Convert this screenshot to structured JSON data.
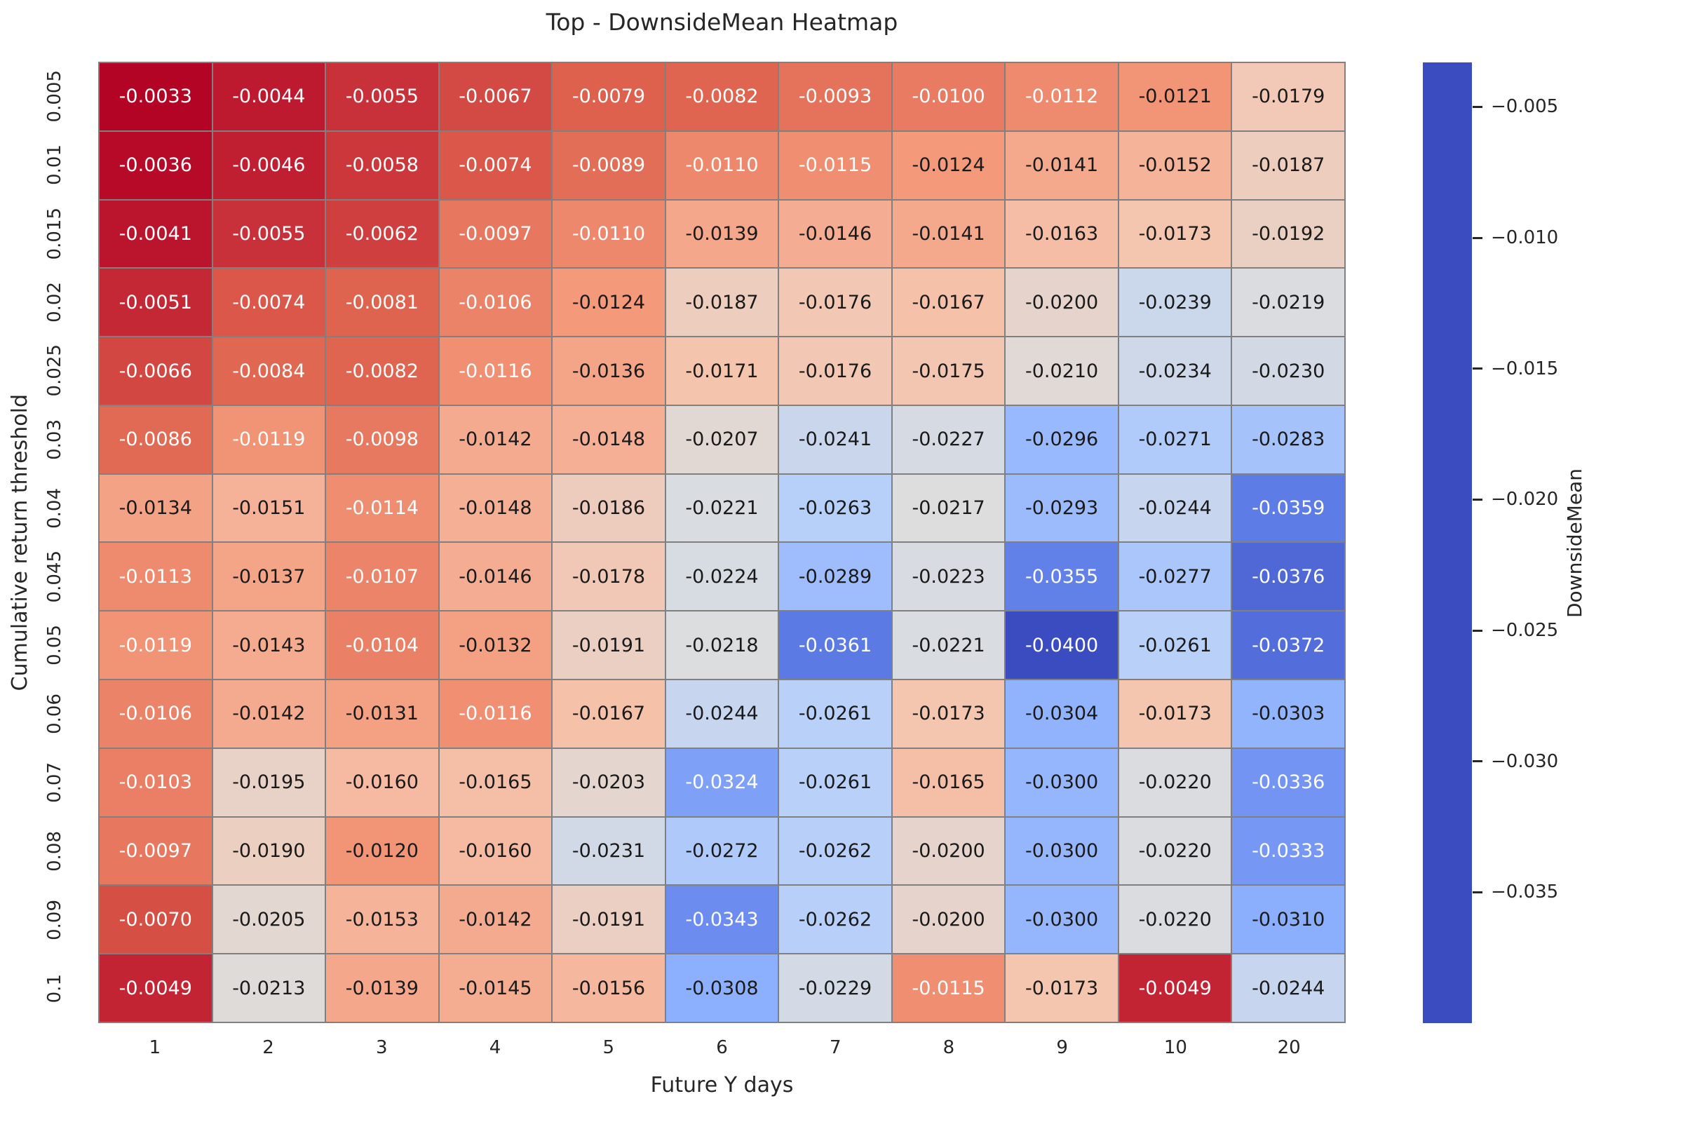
{
  "figure": {
    "background": "#ffffff",
    "text_color": "#262626"
  },
  "title": "Top - DownsideMean Heatmap",
  "chart_data": {
    "type": "heatmap",
    "title": "Top - DownsideMean Heatmap",
    "xlabel": "Future Y days",
    "ylabel": "Cumulative return threshold",
    "x_tick_labels": [
      "1",
      "2",
      "3",
      "4",
      "5",
      "6",
      "7",
      "8",
      "9",
      "10",
      "20"
    ],
    "y_tick_labels": [
      "0.005",
      "0.01",
      "0.015",
      "0.02",
      "0.025",
      "0.03",
      "0.04",
      "0.045",
      "0.05",
      "0.06",
      "0.07",
      "0.08",
      "0.09",
      "0.1"
    ],
    "values": [
      [
        -0.0033,
        -0.0044,
        -0.0055,
        -0.0067,
        -0.0079,
        -0.0082,
        -0.0093,
        -0.01,
        -0.0112,
        -0.0121,
        -0.0179
      ],
      [
        -0.0036,
        -0.0046,
        -0.0058,
        -0.0074,
        -0.0089,
        -0.011,
        -0.0115,
        -0.0124,
        -0.0141,
        -0.0152,
        -0.0187
      ],
      [
        -0.0041,
        -0.0055,
        -0.0062,
        -0.0097,
        -0.011,
        -0.0139,
        -0.0146,
        -0.0141,
        -0.0163,
        -0.0173,
        -0.0192
      ],
      [
        -0.0051,
        -0.0074,
        -0.0081,
        -0.0106,
        -0.0124,
        -0.0187,
        -0.0176,
        -0.0167,
        -0.02,
        -0.0239,
        -0.0219
      ],
      [
        -0.0066,
        -0.0084,
        -0.0082,
        -0.0116,
        -0.0136,
        -0.0171,
        -0.0176,
        -0.0175,
        -0.021,
        -0.0234,
        -0.023
      ],
      [
        -0.0086,
        -0.0119,
        -0.0098,
        -0.0142,
        -0.0148,
        -0.0207,
        -0.0241,
        -0.0227,
        -0.0296,
        -0.0271,
        -0.0283
      ],
      [
        -0.0134,
        -0.0151,
        -0.0114,
        -0.0148,
        -0.0186,
        -0.0221,
        -0.0263,
        -0.0217,
        -0.0293,
        -0.0244,
        -0.0359
      ],
      [
        -0.0113,
        -0.0137,
        -0.0107,
        -0.0146,
        -0.0178,
        -0.0224,
        -0.0289,
        -0.0223,
        -0.0355,
        -0.0277,
        -0.0376
      ],
      [
        -0.0119,
        -0.0143,
        -0.0104,
        -0.0132,
        -0.0191,
        -0.0218,
        -0.0361,
        -0.0221,
        -0.04,
        -0.0261,
        -0.0372
      ],
      [
        -0.0106,
        -0.0142,
        -0.0131,
        -0.0116,
        -0.0167,
        -0.0244,
        -0.0261,
        -0.0173,
        -0.0304,
        -0.0173,
        -0.0303
      ],
      [
        -0.0103,
        -0.0195,
        -0.016,
        -0.0165,
        -0.0203,
        -0.0324,
        -0.0261,
        -0.0165,
        -0.03,
        -0.022,
        -0.0336
      ],
      [
        -0.0097,
        -0.019,
        -0.012,
        -0.016,
        -0.0231,
        -0.0272,
        -0.0262,
        -0.02,
        -0.03,
        -0.022,
        -0.0333
      ],
      [
        -0.007,
        -0.0205,
        -0.0153,
        -0.0142,
        -0.0191,
        -0.0343,
        -0.0262,
        -0.02,
        -0.03,
        -0.022,
        -0.031
      ],
      [
        -0.0049,
        -0.0213,
        -0.0139,
        -0.0145,
        -0.0156,
        -0.0308,
        -0.0229,
        -0.0115,
        -0.0173,
        -0.0049,
        -0.0244
      ]
    ],
    "value_decimals": 4,
    "vmin": -0.04,
    "vmax": -0.0033,
    "grid_line_color": "#808080",
    "colormap": {
      "name": "coolwarm",
      "anchors": [
        "#3b4cc0",
        "#6282ea",
        "#8db0fe",
        "#b8d0f9",
        "#dddddd",
        "#f5c4ad",
        "#f49a7b",
        "#de614d",
        "#b40426"
      ]
    },
    "annotation_text_dark": "#1a1a1a",
    "annotation_text_light": "#ffffff",
    "luminance_threshold": 0.413,
    "legend_position": "right",
    "grid": false,
    "colorbar": {
      "label": "DownsideMean",
      "tick_values": [
        -0.005,
        -0.01,
        -0.015,
        -0.02,
        -0.025,
        -0.03,
        -0.035
      ],
      "tick_labels": [
        "−0.005",
        "−0.010",
        "−0.015",
        "−0.020",
        "−0.025",
        "−0.030",
        "−0.035"
      ]
    }
  }
}
